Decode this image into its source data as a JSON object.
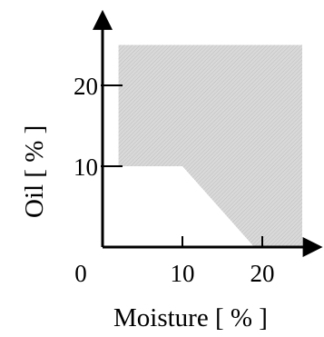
{
  "chart_data": {
    "type": "area",
    "region": {
      "description_points": [
        [
          2,
          10
        ],
        [
          10,
          10
        ],
        [
          19,
          0
        ],
        [
          25,
          0
        ],
        [
          25,
          25
        ],
        [
          2,
          25
        ]
      ],
      "fill": "#c8c8c8"
    },
    "xlabel": "Moisture [ % ]",
    "ylabel": "Oil [ % ]",
    "x_ticks": [
      {
        "value": 0,
        "label": "0"
      },
      {
        "value": 10,
        "label": "10"
      },
      {
        "value": 20,
        "label": "20"
      }
    ],
    "y_ticks": [
      {
        "value": 10,
        "label": "10"
      },
      {
        "value": 20,
        "label": "20"
      }
    ],
    "xlim": [
      0,
      27
    ],
    "ylim": [
      0,
      29
    ],
    "grid": false,
    "axis_color": "#000000"
  }
}
